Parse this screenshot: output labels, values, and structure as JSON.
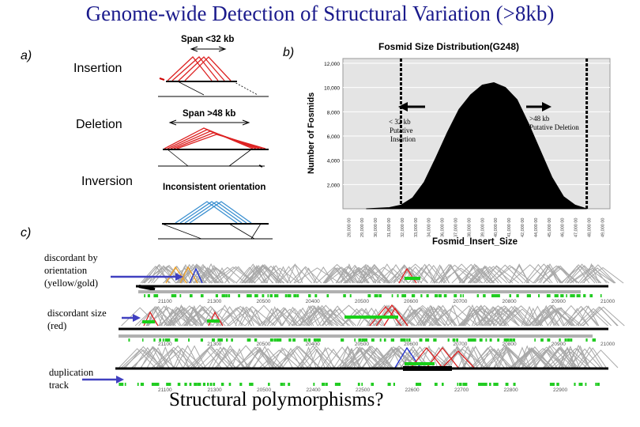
{
  "title": "Genome-wide Detection of Structural Variation (>8kb)",
  "panel_a": {
    "label": "a)",
    "types": [
      "Insertion",
      "Deletion",
      "Inversion"
    ],
    "diagram_labels": {
      "insertion": "Span <32 kb",
      "deletion": "Span >48 kb",
      "inversion": "Inconsistent orientation"
    }
  },
  "panel_b": {
    "label": "b)",
    "chart_data": {
      "type": "area",
      "title": "Fosmid Size Distribution(G248)",
      "xlabel": "Fosmid_Insert_Size",
      "ylabel": "Number of Fosmids",
      "ylim": [
        0,
        12000
      ],
      "yticks": [
        "2,000",
        "4,000",
        "6,000",
        "8,000",
        "10,000",
        "12,000"
      ],
      "x": [
        29000,
        31000,
        32000,
        33000,
        34000,
        35000,
        36000,
        37000,
        38000,
        39000,
        40000,
        41000,
        42000,
        43000,
        44000,
        45000,
        46000,
        47000,
        48000
      ],
      "values": [
        0,
        100,
        300,
        900,
        2200,
        4200,
        6300,
        8200,
        9400,
        10200,
        10400,
        10000,
        9000,
        7000,
        4800,
        2600,
        1000,
        300,
        0
      ],
      "cutoffs": [
        32000,
        48000
      ],
      "annotations": [
        "< 32 kb Putative Insertion",
        ">48 kb Putative Deletion"
      ],
      "grid": true
    }
  },
  "panel_c": {
    "label": "c)",
    "annotations": [
      "discordant by orientation (yellow/gold)",
      "discordant size (red)",
      "duplication track"
    ],
    "track_ticks": [
      [
        "21100",
        "21300",
        "20500",
        "20400",
        "20500",
        "20600",
        "20700",
        "20800",
        "20900",
        "21000"
      ],
      [
        "21100",
        "21300",
        "20500",
        "20400",
        "20500",
        "20600",
        "20700",
        "20800",
        "20900",
        "21000"
      ],
      [
        "21100",
        "21300",
        "20500",
        "22400",
        "22500",
        "22600",
        "22700",
        "22800",
        "22900"
      ]
    ]
  },
  "caption": "Structural polymorphisms?"
}
